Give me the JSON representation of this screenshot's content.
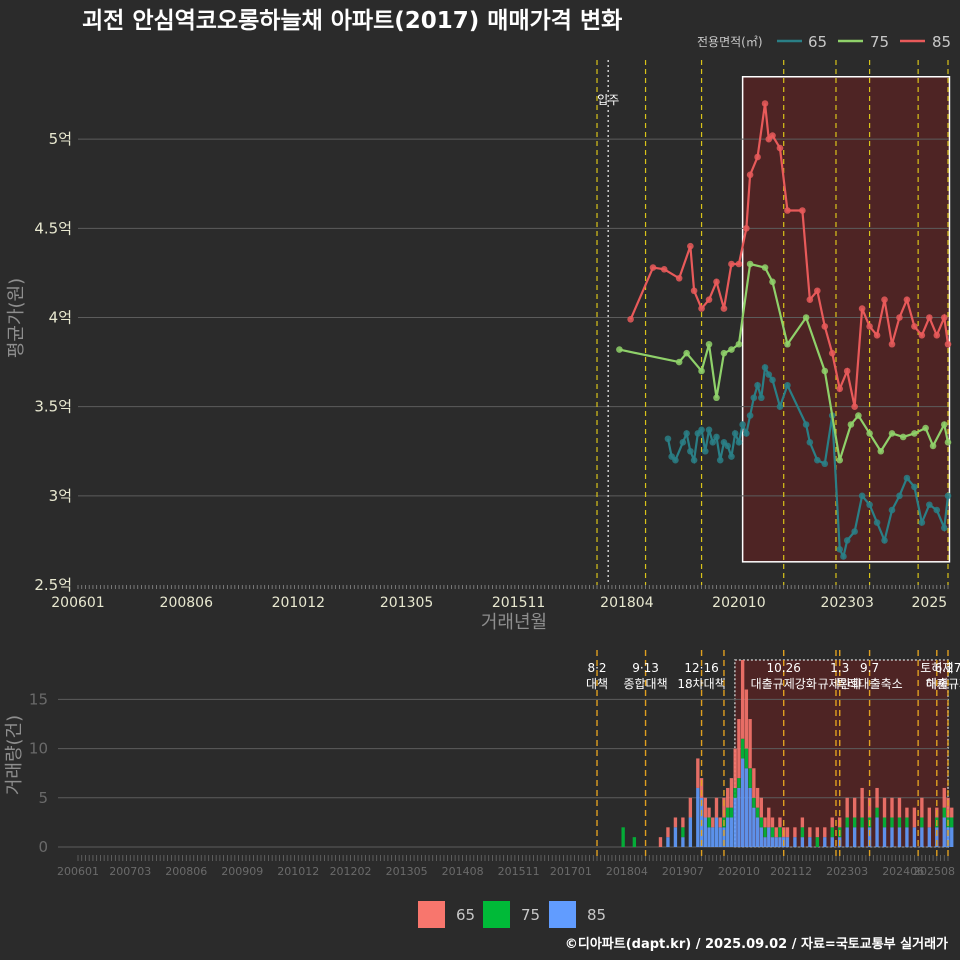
{
  "title": "괴전 안심역코오롱하늘채 아파트(2017) 매매가격 변화",
  "caption": "©디아파트(dapt.kr) / 2025.09.02 / 자료=국토교통부 실거래가",
  "colors": {
    "65": "#2a7f86",
    "75": "#8fd16a",
    "85": "#e85a5a"
  },
  "bar_colors": {
    "65": "#f8766d",
    "75": "#00ba38",
    "85": "#619cff"
  },
  "chart_data": [
    {
      "type": "line",
      "ylabel": "평균가(원)",
      "xlabel": "거래년월",
      "legend_title": "전용면적(㎡)",
      "legend_position": "top-right",
      "xlim": [
        "2006-01",
        "2025-06"
      ],
      "ylim": [
        2.5,
        5.5
      ],
      "x_ticks": [
        "200601",
        "200806",
        "201012",
        "201305",
        "201511",
        "201804",
        "202010",
        "202303",
        "2025"
      ],
      "y_ticks": [
        "2.5억",
        "3억",
        "3.5억",
        "4억",
        "4.5억",
        "5억"
      ],
      "annotation_move_in": "입주",
      "event_lines": [
        "2017-08",
        "2018-09",
        "2019-12",
        "2021-10",
        "2022-12",
        "2023-09",
        "2024-10",
        "2025-06"
      ],
      "move_in_line": "2017-11",
      "highlight_range": [
        "2020-11",
        "2025-08"
      ],
      "series": [
        {
          "name": "65",
          "points": [
            [
              "2019-03",
              3.32
            ],
            [
              "2019-04",
              3.22
            ],
            [
              "2019-05",
              3.2
            ],
            [
              "2019-07",
              3.3
            ],
            [
              "2019-08",
              3.35
            ],
            [
              "2019-09",
              3.25
            ],
            [
              "2019-10",
              3.2
            ],
            [
              "2019-11",
              3.35
            ],
            [
              "2019-12",
              3.37
            ],
            [
              "2020-01",
              3.25
            ],
            [
              "2020-02",
              3.37
            ],
            [
              "2020-03",
              3.3
            ],
            [
              "2020-04",
              3.33
            ],
            [
              "2020-05",
              3.2
            ],
            [
              "2020-06",
              3.3
            ],
            [
              "2020-07",
              3.28
            ],
            [
              "2020-08",
              3.22
            ],
            [
              "2020-09",
              3.35
            ],
            [
              "2020-10",
              3.3
            ],
            [
              "2020-11",
              3.4
            ],
            [
              "2020-12",
              3.35
            ],
            [
              "2021-01",
              3.45
            ],
            [
              "2021-02",
              3.55
            ],
            [
              "2021-03",
              3.62
            ],
            [
              "2021-04",
              3.55
            ],
            [
              "2021-05",
              3.72
            ],
            [
              "2021-06",
              3.68
            ],
            [
              "2021-07",
              3.65
            ],
            [
              "2021-09",
              3.5
            ],
            [
              "2021-11",
              3.62
            ],
            [
              "2022-04",
              3.4
            ],
            [
              "2022-05",
              3.3
            ],
            [
              "2022-07",
              3.2
            ],
            [
              "2022-09",
              3.18
            ],
            [
              "2022-11",
              3.45
            ],
            [
              "2023-01",
              2.7
            ],
            [
              "2023-02",
              2.66
            ],
            [
              "2023-03",
              2.75
            ],
            [
              "2023-05",
              2.8
            ],
            [
              "2023-07",
              3.0
            ],
            [
              "2023-09",
              2.95
            ],
            [
              "2023-11",
              2.85
            ],
            [
              "2024-01",
              2.75
            ],
            [
              "2024-03",
              2.92
            ],
            [
              "2024-05",
              3.0
            ],
            [
              "2024-07",
              3.1
            ],
            [
              "2024-09",
              3.05
            ],
            [
              "2024-11",
              2.85
            ],
            [
              "2025-01",
              2.95
            ],
            [
              "2025-03",
              2.92
            ],
            [
              "2025-05",
              2.82
            ],
            [
              "2025-06",
              3.0
            ]
          ]
        },
        {
          "name": "75",
          "points": [
            [
              "2018-02",
              3.82
            ],
            [
              "2019-06",
              3.75
            ],
            [
              "2019-08",
              3.8
            ],
            [
              "2019-12",
              3.7
            ],
            [
              "2020-02",
              3.85
            ],
            [
              "2020-04",
              3.55
            ],
            [
              "2020-06",
              3.8
            ],
            [
              "2020-08",
              3.82
            ],
            [
              "2020-10",
              3.85
            ],
            [
              "2021-01",
              4.3
            ],
            [
              "2021-05",
              4.28
            ],
            [
              "2021-07",
              4.2
            ],
            [
              "2021-11",
              3.85
            ],
            [
              "2022-04",
              4.0
            ],
            [
              "2022-09",
              3.7
            ],
            [
              "2023-01",
              3.2
            ],
            [
              "2023-04",
              3.4
            ],
            [
              "2023-06",
              3.45
            ],
            [
              "2023-09",
              3.35
            ],
            [
              "2023-12",
              3.25
            ],
            [
              "2024-03",
              3.35
            ],
            [
              "2024-06",
              3.33
            ],
            [
              "2024-09",
              3.35
            ],
            [
              "2024-12",
              3.38
            ],
            [
              "2025-02",
              3.28
            ],
            [
              "2025-05",
              3.4
            ],
            [
              "2025-06",
              3.3
            ]
          ]
        },
        {
          "name": "85",
          "points": [
            [
              "2018-05",
              3.99
            ],
            [
              "2018-11",
              4.28
            ],
            [
              "2019-02",
              4.27
            ],
            [
              "2019-06",
              4.22
            ],
            [
              "2019-09",
              4.4
            ],
            [
              "2019-10",
              4.15
            ],
            [
              "2019-12",
              4.05
            ],
            [
              "2020-02",
              4.1
            ],
            [
              "2020-04",
              4.2
            ],
            [
              "2020-06",
              4.05
            ],
            [
              "2020-08",
              4.3
            ],
            [
              "2020-10",
              4.3
            ],
            [
              "2020-12",
              4.5
            ],
            [
              "2021-01",
              4.8
            ],
            [
              "2021-03",
              4.9
            ],
            [
              "2021-05",
              5.2
            ],
            [
              "2021-06",
              5.0
            ],
            [
              "2021-07",
              5.02
            ],
            [
              "2021-09",
              4.95
            ],
            [
              "2021-11",
              4.6
            ],
            [
              "2022-03",
              4.6
            ],
            [
              "2022-05",
              4.1
            ],
            [
              "2022-07",
              4.15
            ],
            [
              "2022-09",
              3.95
            ],
            [
              "2022-11",
              3.8
            ],
            [
              "2023-01",
              3.6
            ],
            [
              "2023-03",
              3.7
            ],
            [
              "2023-05",
              3.5
            ],
            [
              "2023-07",
              4.05
            ],
            [
              "2023-09",
              3.95
            ],
            [
              "2023-11",
              3.9
            ],
            [
              "2024-01",
              4.1
            ],
            [
              "2024-03",
              3.85
            ],
            [
              "2024-05",
              4.0
            ],
            [
              "2024-07",
              4.1
            ],
            [
              "2024-09",
              3.95
            ],
            [
              "2024-11",
              3.9
            ],
            [
              "2025-01",
              4.0
            ],
            [
              "2025-03",
              3.9
            ],
            [
              "2025-05",
              4.0
            ],
            [
              "2025-06",
              3.85
            ]
          ]
        }
      ]
    },
    {
      "type": "bar",
      "ylabel": "거래량(건)",
      "legend_position": "bottom",
      "ylim": [
        0,
        19
      ],
      "y_ticks": [
        "0",
        "5",
        "10",
        "15"
      ],
      "x_ticks": [
        "200601",
        "200703",
        "200806",
        "200909",
        "201012",
        "201202",
        "201305",
        "201408",
        "201511",
        "201701",
        "201804",
        "201907",
        "202010",
        "202112",
        "202303",
        "202406",
        "202508"
      ],
      "events": [
        {
          "date": "2017-08",
          "label": "8·2 대책"
        },
        {
          "date": "2018-09",
          "label": "9·13 종합대책"
        },
        {
          "date": "2019-12",
          "label": "12·16 18차대책"
        },
        {
          "date": "2020-06",
          "label": ""
        },
        {
          "date": "2021-10",
          "label": "10.26 대출규제강화"
        },
        {
          "date": "2022-12",
          "label": ""
        },
        {
          "date": "2023-01",
          "label": "1.3 규제완화"
        },
        {
          "date": "2023-09",
          "label": "9.7 특례대출축소"
        },
        {
          "date": "2024-10",
          "label": ""
        },
        {
          "date": "2025-03",
          "label": "토허제 해제"
        },
        {
          "date": "2025-06",
          "label": "6.27 대출규제"
        }
      ],
      "highlight_range": [
        "2020-10",
        "2025-08"
      ],
      "series_names": [
        "65",
        "75",
        "85"
      ],
      "bars": [
        [
          "2018-03",
          0,
          2,
          0
        ],
        [
          "2018-06",
          0,
          1,
          0
        ],
        [
          "2019-01",
          1,
          0,
          0
        ],
        [
          "2019-03",
          1,
          0,
          1
        ],
        [
          "2019-05",
          1,
          0,
          2
        ],
        [
          "2019-07",
          1,
          1,
          1
        ],
        [
          "2019-09",
          2,
          0,
          3
        ],
        [
          "2019-11",
          3,
          0,
          6
        ],
        [
          "2019-12",
          2,
          0,
          5
        ],
        [
          "2020-01",
          2,
          0,
          3
        ],
        [
          "2020-02",
          1,
          1,
          2
        ],
        [
          "2020-03",
          1,
          0,
          2
        ],
        [
          "2020-04",
          2,
          0,
          3
        ],
        [
          "2020-05",
          1,
          0,
          2
        ],
        [
          "2020-06",
          2,
          1,
          2
        ],
        [
          "2020-07",
          2,
          1,
          3
        ],
        [
          "2020-08",
          3,
          1,
          3
        ],
        [
          "2020-09",
          4,
          1,
          5
        ],
        [
          "2020-10",
          6,
          1,
          6
        ],
        [
          "2020-11",
          8,
          2,
          9
        ],
        [
          "2020-12",
          6,
          2,
          8
        ],
        [
          "2021-01",
          5,
          2,
          6
        ],
        [
          "2021-02",
          3,
          1,
          4
        ],
        [
          "2021-03",
          2,
          1,
          3
        ],
        [
          "2021-04",
          2,
          1,
          2
        ],
        [
          "2021-05",
          1,
          1,
          1
        ],
        [
          "2021-06",
          2,
          0,
          2
        ],
        [
          "2021-07",
          1,
          1,
          1
        ],
        [
          "2021-08",
          1,
          0,
          1
        ],
        [
          "2021-09",
          1,
          1,
          1
        ],
        [
          "2021-10",
          1,
          0,
          1
        ],
        [
          "2021-11",
          1,
          0,
          1
        ],
        [
          "2022-01",
          1,
          0,
          1
        ],
        [
          "2022-03",
          1,
          1,
          1
        ],
        [
          "2022-05",
          1,
          0,
          1
        ],
        [
          "2022-07",
          1,
          1,
          0
        ],
        [
          "2022-09",
          1,
          0,
          1
        ],
        [
          "2022-11",
          1,
          1,
          1
        ],
        [
          "2023-01",
          1,
          1,
          1
        ],
        [
          "2023-03",
          2,
          1,
          2
        ],
        [
          "2023-05",
          2,
          1,
          2
        ],
        [
          "2023-07",
          3,
          1,
          2
        ],
        [
          "2023-09",
          2,
          1,
          2
        ],
        [
          "2023-11",
          2,
          1,
          3
        ],
        [
          "2024-01",
          2,
          1,
          2
        ],
        [
          "2024-03",
          2,
          1,
          2
        ],
        [
          "2024-05",
          2,
          1,
          2
        ],
        [
          "2024-07",
          1,
          1,
          2
        ],
        [
          "2024-09",
          2,
          0,
          2
        ],
        [
          "2024-11",
          2,
          1,
          2
        ],
        [
          "2025-01",
          2,
          0,
          2
        ],
        [
          "2025-03",
          1,
          1,
          2
        ],
        [
          "2025-05",
          2,
          1,
          3
        ],
        [
          "2025-06",
          2,
          1,
          2
        ],
        [
          "2025-07",
          1,
          1,
          2
        ]
      ]
    }
  ]
}
